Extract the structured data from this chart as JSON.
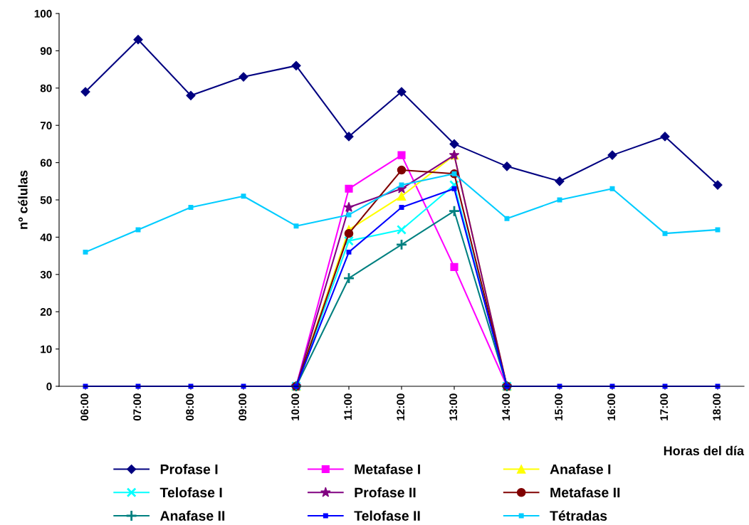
{
  "chart_data": {
    "type": "line",
    "xlabel": "Horas del día",
    "ylabel": "nº células",
    "categories": [
      "06:00",
      "07:00",
      "08:00",
      "09:00",
      "10:00",
      "11:00",
      "12:00",
      "13:00",
      "14:00",
      "15:00",
      "16:00",
      "17:00",
      "18:00"
    ],
    "series": [
      {
        "name": "Profase I",
        "color": "#000080",
        "marker": "diamond",
        "values": [
          79,
          93,
          78,
          83,
          86,
          67,
          79,
          65,
          59,
          55,
          62,
          67,
          54
        ]
      },
      {
        "name": "Metafase I",
        "color": "#ff00ff",
        "marker": "square",
        "values": [
          null,
          null,
          null,
          null,
          0,
          53,
          62,
          32,
          0,
          null,
          null,
          null,
          null
        ]
      },
      {
        "name": "Anafase I",
        "color": "#ffff00",
        "marker": "triangle",
        "values": [
          null,
          null,
          null,
          null,
          0,
          42,
          51,
          62,
          0,
          null,
          null,
          null,
          null
        ]
      },
      {
        "name": "Telofase I",
        "color": "#00ffff",
        "marker": "cross",
        "values": [
          null,
          null,
          null,
          null,
          0,
          39,
          42,
          54,
          0,
          null,
          null,
          null,
          null
        ]
      },
      {
        "name": "Profase II",
        "color": "#800080",
        "marker": "star",
        "values": [
          null,
          null,
          null,
          null,
          0,
          48,
          53,
          62,
          0,
          null,
          null,
          null,
          null
        ]
      },
      {
        "name": "Metafase II",
        "color": "#800000",
        "marker": "circle",
        "values": [
          null,
          null,
          null,
          null,
          0,
          41,
          58,
          57,
          0,
          null,
          null,
          null,
          null
        ]
      },
      {
        "name": "Anafase II",
        "color": "#008080",
        "marker": "plus",
        "values": [
          null,
          null,
          null,
          null,
          0,
          29,
          38,
          47,
          0,
          null,
          null,
          null,
          null
        ]
      },
      {
        "name": "Telofase II",
        "color": "#0000ff",
        "marker": "square",
        "values": [
          0,
          0,
          0,
          0,
          0,
          36,
          48,
          53,
          0,
          0,
          0,
          0,
          0
        ]
      },
      {
        "name": "Tétradas",
        "color": "#00ccff",
        "marker": "square",
        "values": [
          36,
          42,
          48,
          51,
          43,
          46,
          54,
          57,
          45,
          50,
          53,
          41,
          42
        ]
      }
    ],
    "ylim": [
      0,
      100
    ],
    "yticks": [
      0,
      10,
      20,
      30,
      40,
      50,
      60,
      70,
      80,
      90,
      100
    ],
    "grid": false,
    "legend": "bottom",
    "line_style": "solid"
  }
}
